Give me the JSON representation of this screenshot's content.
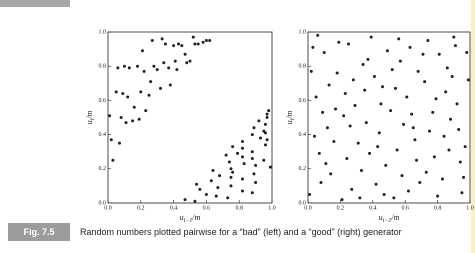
{
  "figure": {
    "label": "Fig. 7.5",
    "caption": "Random numbers plotted pairwise for a “bad” (left) and a “good” (right) generator"
  },
  "chart_data": [
    {
      "type": "scatter",
      "color": "#222222",
      "xlabel": {
        "base": "u",
        "sub": "i−1",
        "rest": "/m"
      },
      "ylabel": {
        "base": "u",
        "sub": "i",
        "rest": "/m"
      },
      "xlim": [
        0,
        1
      ],
      "ylim": [
        0,
        1
      ],
      "xticks": [
        {
          "value": 0,
          "label": "0.0"
        },
        0.2,
        0.4,
        0.6,
        0.8,
        {
          "value": 1,
          "label": "1.0"
        }
      ],
      "yticks": [
        {
          "value": 0,
          "label": "0.0"
        },
        0.2,
        0.4,
        0.6,
        0.8,
        {
          "value": 1,
          "label": "1.0"
        }
      ],
      "x": [
        0.02,
        0.05,
        0.08,
        0.03,
        0.1,
        0.12,
        0.15,
        0.18,
        0.2,
        0.22,
        0.25,
        0.27,
        0.3,
        0.32,
        0.35,
        0.37,
        0.4,
        0.42,
        0.45,
        0.47,
        0.5,
        0.52,
        0.55,
        0.58,
        0.6,
        0.62,
        0.07,
        0.13,
        0.16,
        0.23,
        0.28,
        0.33,
        0.38,
        0.43,
        0.01,
        0.06,
        0.11,
        0.19,
        0.26,
        0.34,
        0.41,
        0.48,
        0.53,
        0.09,
        0.21,
        0.47,
        0.73,
        0.6,
        0.88,
        0.56,
        0.75,
        0.9,
        0.63,
        0.75,
        0.89,
        0.64,
        0.75,
        0.9,
        0.74,
        0.88,
        0.72,
        0.88,
        0.82,
        0.96,
        0.82,
        0.93,
        0.88,
        0.95,
        0.89,
        0.96,
        0.92,
        0.97,
        0.97,
        0.98,
        0.66,
        0.82,
        0.54,
        0.82,
        0.76,
        0.99,
        0.95,
        0.79,
        0.76,
        0.97,
        0.96,
        0.53,
        0.67,
        0.68,
        0.83,
        0.82
      ],
      "y": [
        0.37,
        0.65,
        0.5,
        0.25,
        0.8,
        0.62,
        0.48,
        0.8,
        0.65,
        0.77,
        0.63,
        0.95,
        0.78,
        0.67,
        0.93,
        0.79,
        0.92,
        0.78,
        0.92,
        0.87,
        0.83,
        0.97,
        0.93,
        0.94,
        0.95,
        0.95,
        0.35,
        0.79,
        0.56,
        0.54,
        0.8,
        0.96,
        0.69,
        0.93,
        0.51,
        0.79,
        0.47,
        0.49,
        0.71,
        0.82,
        0.83,
        0.82,
        0.93,
        0.64,
        0.89,
        0.02,
        0.03,
        0.05,
        0.06,
        0.08,
        0.1,
        0.12,
        0.13,
        0.15,
        0.17,
        0.19,
        0.2,
        0.22,
        0.24,
        0.26,
        0.28,
        0.3,
        0.32,
        0.34,
        0.36,
        0.38,
        0.4,
        0.42,
        0.44,
        0.46,
        0.48,
        0.5,
        0.52,
        0.54,
        0.04,
        0.07,
        0.11,
        0.14,
        0.18,
        0.21,
        0.25,
        0.29,
        0.33,
        0.37,
        0.41,
        0.01,
        0.09,
        0.16,
        0.23,
        0.27
      ]
    },
    {
      "type": "scatter",
      "color": "#222222",
      "xlabel": {
        "base": "u",
        "sub": "i−1",
        "rest": "/m"
      },
      "ylabel": {
        "base": "u",
        "sub": "i",
        "rest": "/m"
      },
      "xlim": [
        0,
        1
      ],
      "ylim": [
        0,
        1
      ],
      "xticks": [
        {
          "value": 0,
          "label": "0.0"
        },
        0.2,
        0.4,
        0.6,
        0.8,
        {
          "value": 1,
          "label": "1.0"
        }
      ],
      "yticks": [
        {
          "value": 0,
          "label": "0.0"
        },
        0.2,
        0.4,
        0.6,
        0.8,
        {
          "value": 1,
          "label": "1.0"
        }
      ],
      "x": [
        0.03,
        0.12,
        0.27,
        0.35,
        0.48,
        0.57,
        0.66,
        0.74,
        0.83,
        0.92,
        0.07,
        0.18,
        0.22,
        0.39,
        0.44,
        0.53,
        0.61,
        0.78,
        0.86,
        0.97,
        0.05,
        0.14,
        0.31,
        0.37,
        0.46,
        0.59,
        0.69,
        0.72,
        0.88,
        0.95,
        0.01,
        0.1,
        0.25,
        0.29,
        0.42,
        0.51,
        0.63,
        0.77,
        0.81,
        0.99,
        0.09,
        0.16,
        0.21,
        0.33,
        0.49,
        0.55,
        0.68,
        0.75,
        0.9,
        0.94,
        0.04,
        0.13,
        0.24,
        0.36,
        0.41,
        0.58,
        0.64,
        0.8,
        0.85,
        0.98,
        0.08,
        0.19,
        0.28,
        0.32,
        0.45,
        0.52,
        0.67,
        0.71,
        0.87,
        0.93,
        0.02,
        0.11,
        0.23,
        0.38,
        0.47,
        0.56,
        0.62,
        0.79,
        0.84,
        0.96,
        0.06,
        0.17,
        0.26,
        0.34,
        0.43,
        0.54,
        0.65,
        0.73,
        0.89,
        0.91
      ],
      "y": [
        0.91,
        0.44,
        0.08,
        0.66,
        0.22,
        0.83,
        0.37,
        0.95,
        0.14,
        0.58,
        0.29,
        0.76,
        0.51,
        0.97,
        0.41,
        0.03,
        0.62,
        0.27,
        0.79,
        0.33,
        0.62,
        0.17,
        0.35,
        0.84,
        0.68,
        0.46,
        0.12,
        0.71,
        0.49,
        0.06,
        0.05,
        0.88,
        0.93,
        0.57,
        0.11,
        0.54,
        0.91,
        0.53,
        0.87,
        0.72,
        0.53,
        0.36,
        0.02,
        0.19,
        0.89,
        0.31,
        0.77,
        0.42,
        0.97,
        0.24,
        0.39,
        0.69,
        0.26,
        0.47,
        0.74,
        0.16,
        0.52,
        0.04,
        0.65,
        0.88,
        0.12,
        0.94,
        0.72,
        0.03,
        0.58,
        0.78,
        0.25,
        0.87,
        0.31,
        0.43,
        0.77,
        0.23,
        0.64,
        0.29,
        0.05,
        0.96,
        0.07,
        0.61,
        0.39,
        0.15,
        0.98,
        0.55,
        0.45,
        0.81,
        0.33,
        0.67,
        0.44,
        0.18,
        0.74,
        0.92
      ]
    }
  ]
}
